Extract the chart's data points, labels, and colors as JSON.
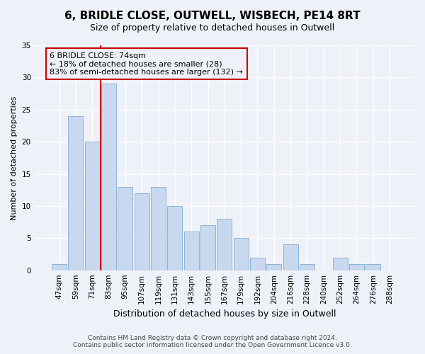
{
  "title": "6, BRIDLE CLOSE, OUTWELL, WISBECH, PE14 8RT",
  "subtitle": "Size of property relative to detached houses in Outwell",
  "xlabel": "Distribution of detached houses by size in Outwell",
  "ylabel": "Number of detached properties",
  "bar_labels": [
    "47sqm",
    "59sqm",
    "71sqm",
    "83sqm",
    "95sqm",
    "107sqm",
    "119sqm",
    "131sqm",
    "143sqm",
    "155sqm",
    "167sqm",
    "179sqm",
    "192sqm",
    "204sqm",
    "216sqm",
    "228sqm",
    "240sqm",
    "252sqm",
    "264sqm",
    "276sqm",
    "288sqm"
  ],
  "bar_values": [
    1,
    24,
    20,
    29,
    13,
    12,
    13,
    10,
    6,
    7,
    8,
    5,
    2,
    1,
    4,
    1,
    0,
    2,
    1,
    1,
    0
  ],
  "bar_color": "#c8d8ee",
  "bar_edge_color": "#8ab4d8",
  "vline_color": "#cc0000",
  "annotation_title": "6 BRIDLE CLOSE: 74sqm",
  "annotation_line1": "← 18% of detached houses are smaller (28)",
  "annotation_line2": "83% of semi-detached houses are larger (132) →",
  "annotation_box_color": "#cc0000",
  "ylim": [
    0,
    35
  ],
  "yticks": [
    0,
    5,
    10,
    15,
    20,
    25,
    30,
    35
  ],
  "footer1": "Contains HM Land Registry data © Crown copyright and database right 2024.",
  "footer2": "Contains public sector information licensed under the Open Government Licence v3.0.",
  "bg_color": "#eef2f8",
  "grid_color": "#ffffff",
  "title_fontsize": 11,
  "subtitle_fontsize": 9,
  "xlabel_fontsize": 9,
  "ylabel_fontsize": 8,
  "tick_fontsize": 7.5,
  "footer_fontsize": 6.5,
  "ann_fontsize": 8
}
